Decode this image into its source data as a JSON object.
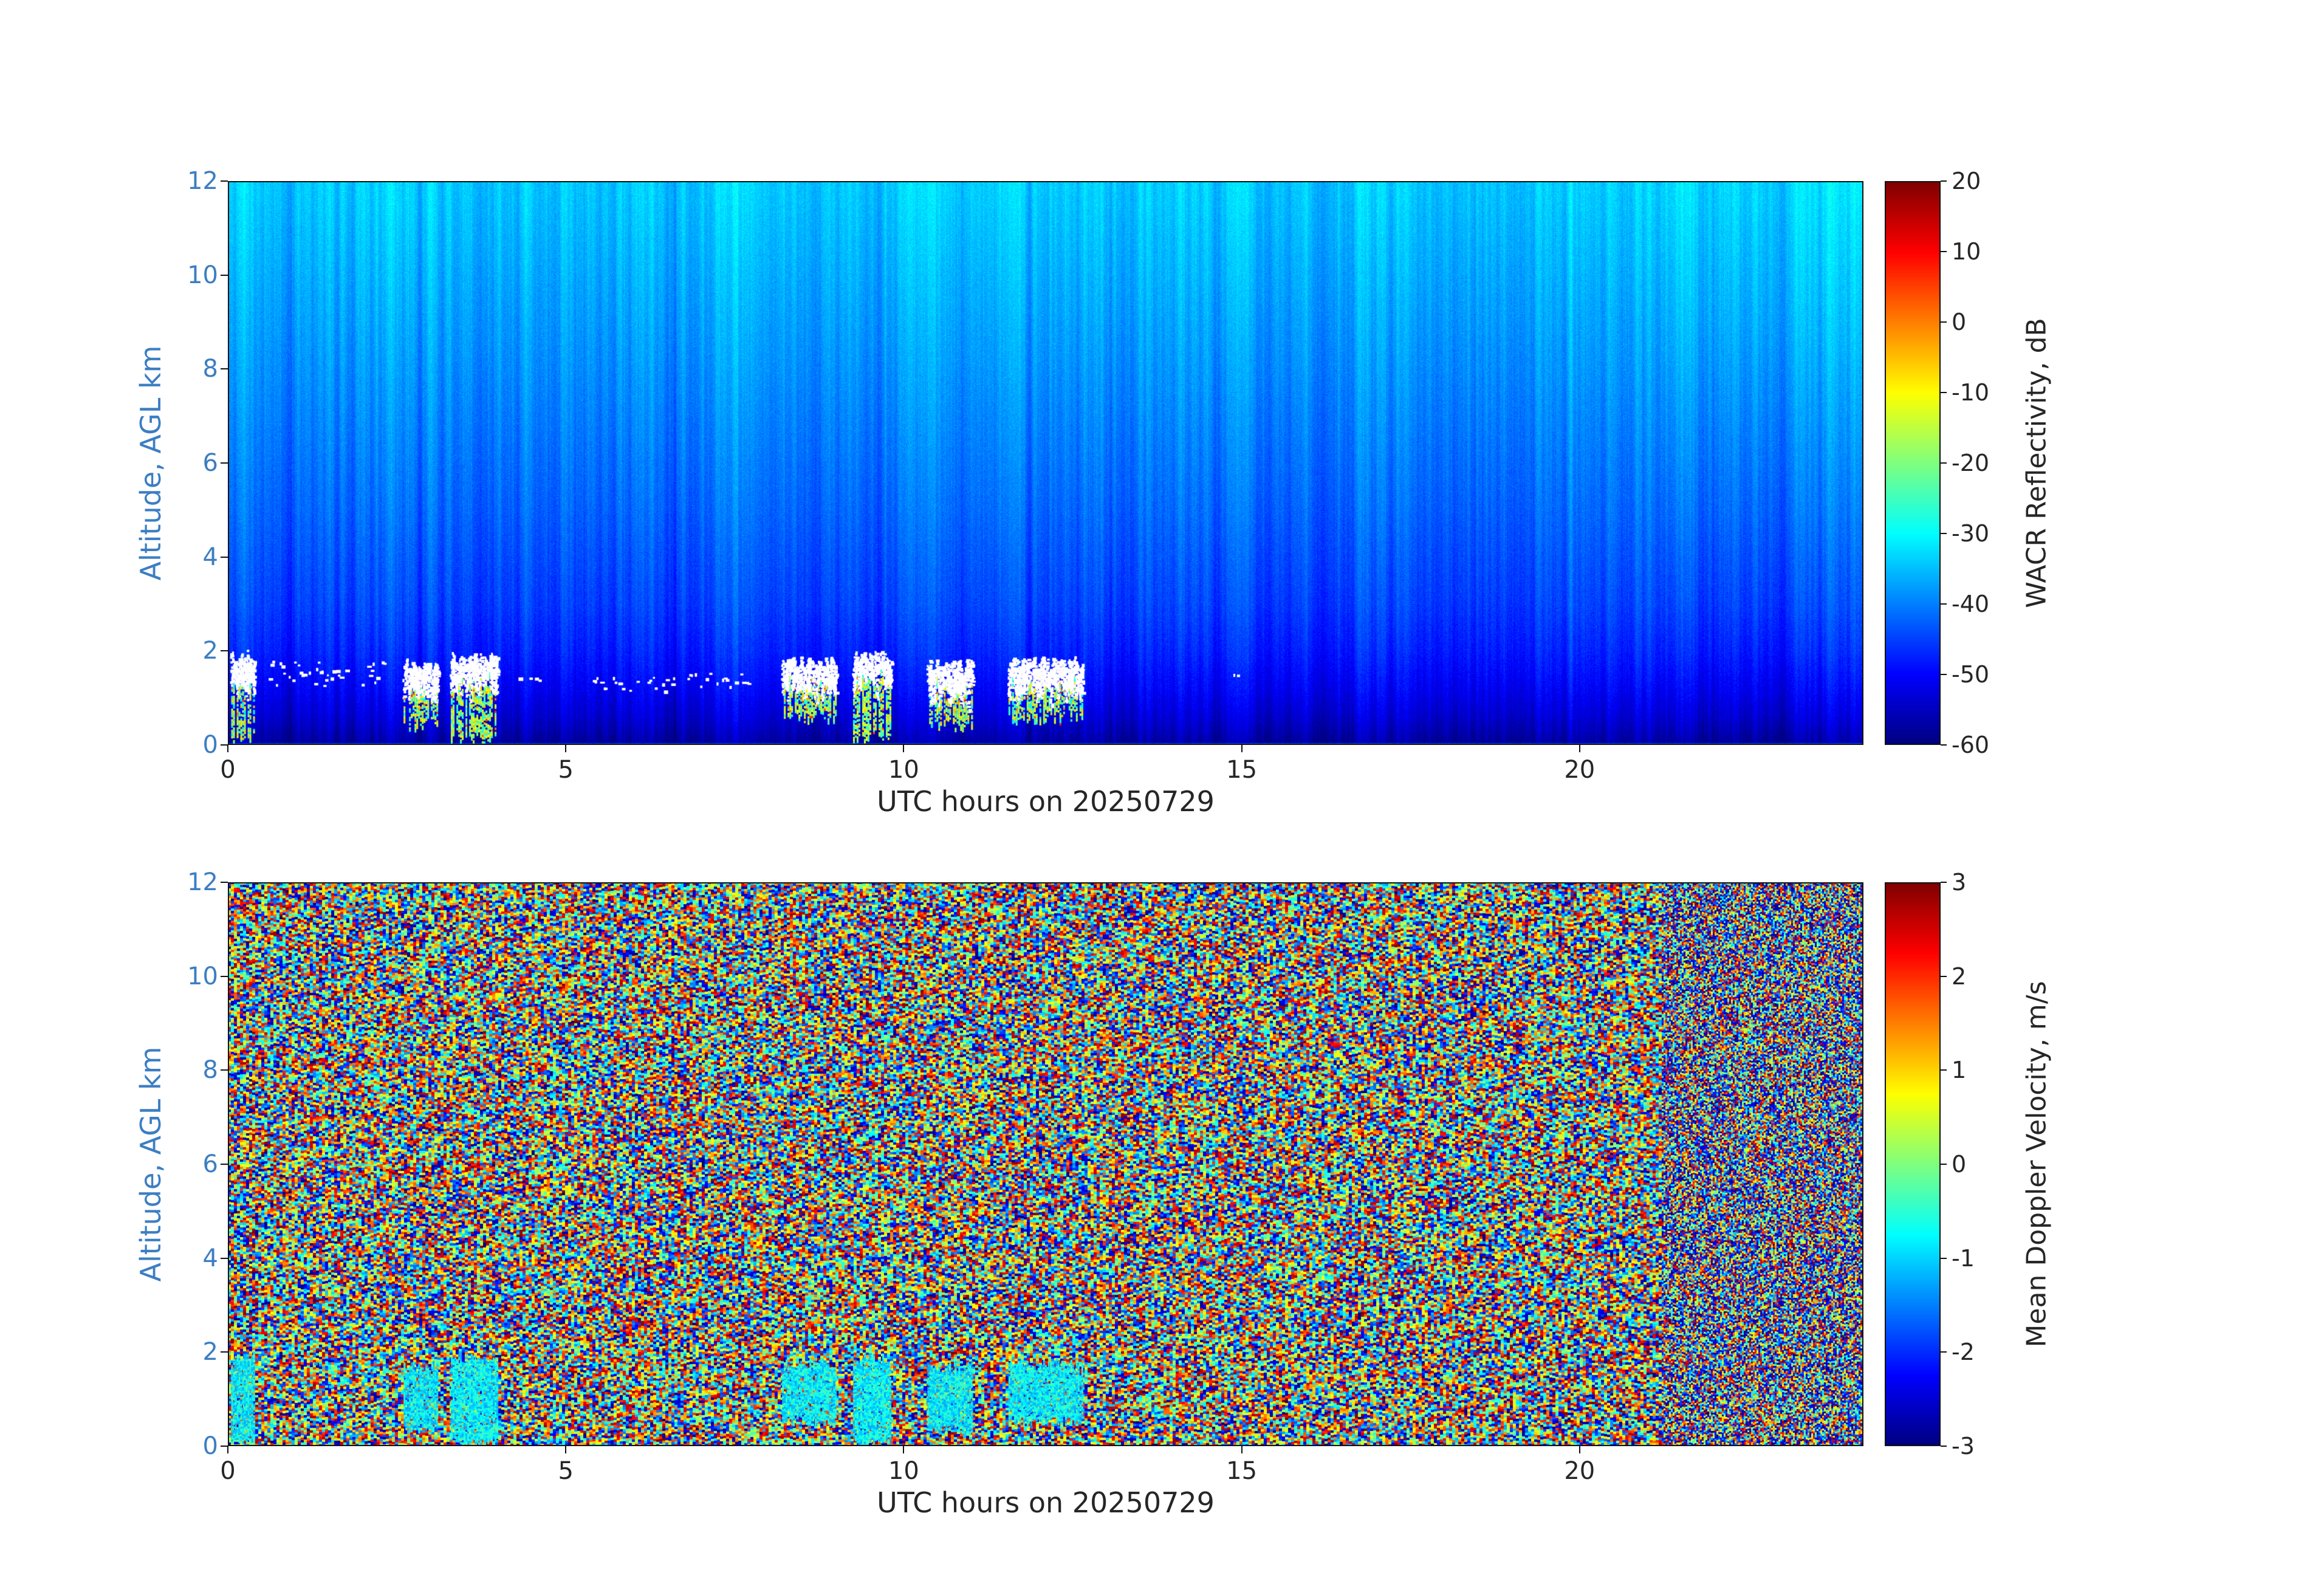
{
  "figure": {
    "date_label": "20250729",
    "colors": {
      "background": "#ffffff",
      "y_axis_text": "#3c7ec2",
      "x_axis_text": "#262626",
      "frame": "#111111"
    },
    "panels": [
      {
        "id": "reflectivity",
        "xlabel": "UTC hours on 20250729",
        "ylabel": "Altitude, AGL km",
        "xticks": [
          0,
          5,
          10,
          15,
          20
        ],
        "yticks": [
          0,
          2,
          4,
          6,
          8,
          10,
          12
        ],
        "xlim": [
          0,
          24.2
        ],
        "ylim": [
          0,
          12
        ],
        "colorbar": {
          "label": "WACR Reflectivity, dB",
          "ticks": [
            20,
            10,
            0,
            -10,
            -20,
            -30,
            -40,
            -50,
            -60
          ],
          "lim": [
            -60,
            20
          ]
        }
      },
      {
        "id": "velocity",
        "xlabel": "UTC hours on 20250729",
        "ylabel": "Altitude, AGL km",
        "xticks": [
          0,
          5,
          10,
          15,
          20
        ],
        "yticks": [
          0,
          2,
          4,
          6,
          8,
          10,
          12
        ],
        "xlim": [
          0,
          24.2
        ],
        "ylim": [
          0,
          12
        ],
        "colorbar": {
          "label": "Mean Doppler Velocity, m/s",
          "ticks": [
            3,
            2,
            1,
            0,
            -1,
            -2,
            -3
          ],
          "lim": [
            -3,
            3
          ]
        }
      }
    ]
  },
  "chart_data": [
    {
      "type": "heatmap",
      "panel": "top",
      "xlabel": "UTC hours on 20250729",
      "ylabel": "Altitude, AGL km",
      "xlim": [
        0,
        24.2
      ],
      "ylim": [
        0,
        12
      ],
      "colormap": "jet",
      "value_label": "WACR Reflectivity, dB",
      "value_range": [
        -60,
        20
      ],
      "background_profile_db_by_km": [
        [
          0,
          -58
        ],
        [
          0.25,
          -56
        ],
        [
          0.6,
          -53.5
        ],
        [
          1.2,
          -50.5
        ],
        [
          2,
          -47.5
        ],
        [
          3,
          -45
        ],
        [
          5,
          -42
        ],
        [
          8,
          -38.5
        ],
        [
          12,
          -34
        ]
      ],
      "noise_db": 4.6,
      "brighter_after_utc": 21.2,
      "cloud_render": "white where echo exceeds color scale top; colored fall streaks about -30 to -6 dB below cloud base",
      "cloud_events": [
        {
          "t0": 0.05,
          "t1": 0.4,
          "top_km": 1.9,
          "base_km": 0.0,
          "style": "blob",
          "precip": true
        },
        {
          "t0": 0.55,
          "t1": 2.35,
          "top_km": 1.8,
          "base_km": 1.25,
          "style": "speck",
          "precip": false
        },
        {
          "t0": 2.6,
          "t1": 3.1,
          "top_km": 1.7,
          "base_km": 0.3,
          "style": "blob",
          "precip": true
        },
        {
          "t0": 3.3,
          "t1": 4.0,
          "top_km": 1.85,
          "base_km": 0.0,
          "style": "blob",
          "precip": true
        },
        {
          "t0": 4.3,
          "t1": 4.6,
          "top_km": 1.5,
          "base_km": 1.2,
          "style": "speck",
          "precip": false
        },
        {
          "t0": 5.4,
          "t1": 6.6,
          "top_km": 1.45,
          "base_km": 1.15,
          "style": "speck",
          "precip": false
        },
        {
          "t0": 6.8,
          "t1": 7.7,
          "top_km": 1.55,
          "base_km": 1.25,
          "style": "speck",
          "precip": false
        },
        {
          "t0": 8.2,
          "t1": 9.0,
          "top_km": 1.75,
          "base_km": 0.45,
          "style": "blob",
          "precip": true
        },
        {
          "t0": 9.25,
          "t1": 9.8,
          "top_km": 1.85,
          "base_km": 0.0,
          "style": "blob",
          "precip": true
        },
        {
          "t0": 10.35,
          "t1": 11.0,
          "top_km": 1.7,
          "base_km": 0.25,
          "style": "blob",
          "precip": true
        },
        {
          "t0": 11.55,
          "t1": 12.65,
          "top_km": 1.75,
          "base_km": 0.45,
          "style": "blob",
          "precip": true
        },
        {
          "t0": 14.85,
          "t1": 14.95,
          "top_km": 1.55,
          "base_km": 1.4,
          "style": "speck",
          "precip": false
        }
      ]
    },
    {
      "type": "heatmap",
      "panel": "bottom",
      "xlabel": "UTC hours on 20250729",
      "ylabel": "Altitude, AGL km",
      "xlim": [
        0,
        24.2
      ],
      "ylim": [
        0,
        12
      ],
      "colormap": "jet",
      "value_label": "Mean Doppler Velocity, m/s",
      "value_range": [
        -3,
        3
      ],
      "background": "uniform random speckle noise spanning the full -3 to 3 m/s range (no coherent signal)",
      "texture_change_utc": 21.2,
      "cloud_patch_velocity_range": [
        -1.3,
        -0.3
      ],
      "cloud_patch_source": "coherent cyan patches below 2 km at same times/altitudes as reflectivity cloud events"
    }
  ]
}
